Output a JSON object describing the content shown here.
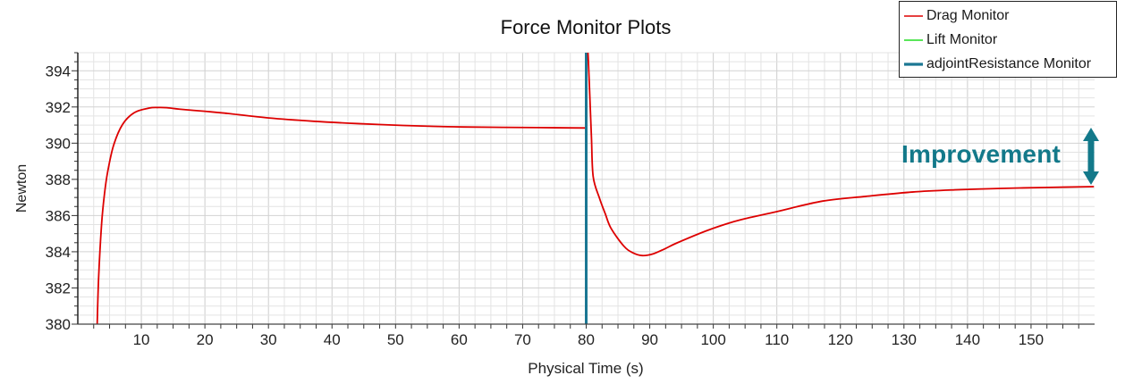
{
  "chart_data": {
    "type": "line",
    "title": "Force Monitor Plots",
    "xlabel": "Physical Time (s)",
    "ylabel": "Newton",
    "xlim": [
      0,
      160
    ],
    "ylim": [
      380,
      395
    ],
    "xticks": [
      10,
      20,
      30,
      40,
      50,
      60,
      70,
      80,
      90,
      100,
      110,
      120,
      130,
      140,
      150
    ],
    "yticks": [
      380,
      382,
      384,
      386,
      388,
      390,
      392,
      394
    ],
    "grid": {
      "on": true,
      "x_minor_step": 2.5,
      "x_major_step": 10,
      "y_minor_step": 0.5,
      "y_major_step": 2
    },
    "legend_position": "top-right",
    "series": [
      {
        "name": "Drag Monitor",
        "color": "#dd0000",
        "line_width": 1.8,
        "segments": [
          [
            [
              3.05,
              380.0
            ],
            [
              3.28,
              382.6
            ],
            [
              3.75,
              385.56
            ],
            [
              4.2,
              387.2
            ],
            [
              4.69,
              388.4
            ],
            [
              5.62,
              389.87
            ],
            [
              7.03,
              391.03
            ],
            [
              8.9,
              391.69
            ],
            [
              11.25,
              391.94
            ],
            [
              12.65,
              391.97
            ],
            [
              14.0,
              391.96
            ],
            [
              16.0,
              391.88
            ],
            [
              20.0,
              391.76
            ],
            [
              23.1,
              391.66
            ],
            [
              30.1,
              391.39
            ],
            [
              37.1,
              391.21
            ],
            [
              44.1,
              391.08
            ],
            [
              51.2,
              390.98
            ],
            [
              58.2,
              390.91
            ],
            [
              65.2,
              390.88
            ],
            [
              72.3,
              390.86
            ],
            [
              79.8,
              390.84
            ]
          ],
          [
            [
              80.2,
              395.5
            ],
            [
              80.35,
              394.5
            ],
            [
              80.55,
              392.77
            ],
            [
              80.83,
              390.28
            ],
            [
              81.1,
              388.15
            ],
            [
              82.1,
              386.95
            ],
            [
              83.0,
              386.1
            ],
            [
              83.9,
              385.3
            ],
            [
              85.9,
              384.32
            ],
            [
              87.3,
              383.95
            ],
            [
              88.8,
              383.79
            ],
            [
              90.5,
              383.88
            ],
            [
              92.3,
              384.15
            ],
            [
              94.3,
              384.49
            ],
            [
              99.0,
              385.17
            ],
            [
              103.2,
              385.66
            ],
            [
              106.0,
              385.91
            ],
            [
              110.0,
              386.22
            ],
            [
              117.2,
              386.8
            ],
            [
              124.0,
              387.06
            ],
            [
              131.3,
              387.3
            ],
            [
              138.0,
              387.42
            ],
            [
              145.3,
              387.5
            ],
            [
              152.0,
              387.55
            ],
            [
              159.9,
              387.6
            ]
          ]
        ]
      },
      {
        "name": "Lift Monitor",
        "color": "#22dd22",
        "line_width": 1.5,
        "segments": []
      },
      {
        "name": "adjointResistance Monitor",
        "color": "#1b7793",
        "line_width": 3,
        "segments": [
          [
            [
              80.0,
              380.0
            ],
            [
              80.0,
              395.0
            ]
          ]
        ]
      }
    ],
    "annotations": [
      {
        "text": "Improvement",
        "type": "double-headed-arrow",
        "color": "#13798a",
        "arrow_x": 160,
        "arrow_y_range": [
          387.8,
          390.8
        ]
      }
    ]
  }
}
